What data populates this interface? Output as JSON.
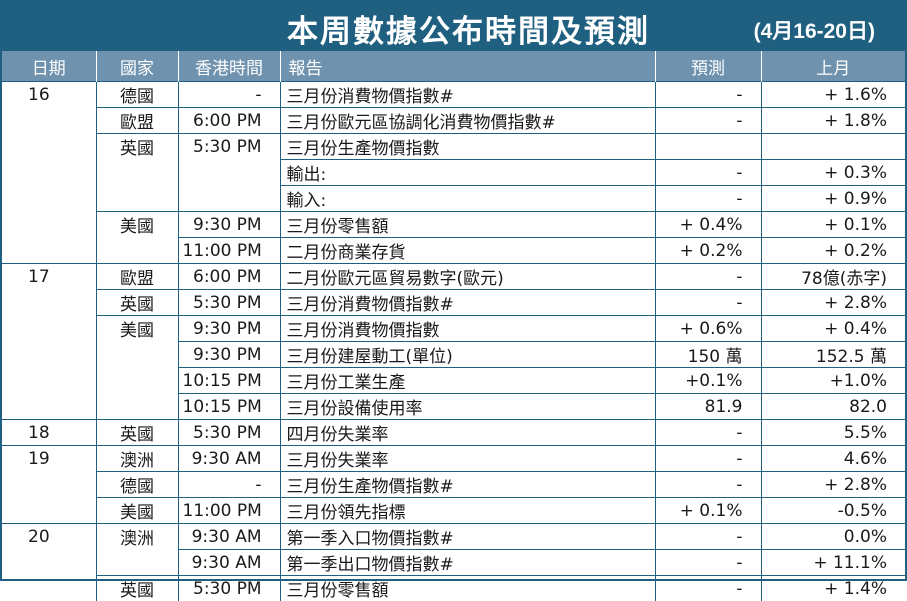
{
  "title": "本周數據公布時間及預測",
  "date_range": "(4月16-20日)",
  "headers": {
    "date": "日期",
    "country": "國家",
    "time": "香港時間",
    "report": "報告",
    "forecast": "預測",
    "last_month": "上月"
  },
  "colors": {
    "header_dark": "#1f5f80",
    "header_light": "#6f92ae",
    "border": "#1f5f80"
  },
  "rows": [
    {
      "date": "16",
      "country": "德國",
      "time": "-",
      "report": "三月份消費物價指數#",
      "forecast": "-",
      "last": "+ 1.6%"
    },
    {
      "date": "",
      "country": "歐盟",
      "time": "6:00 PM",
      "report": "三月份歐元區協調化消費物價指數#",
      "forecast": "-",
      "last": "+ 1.8%"
    },
    {
      "date": "",
      "country": "英國",
      "time": "5:30 PM",
      "report": "三月份生產物價指數",
      "forecast": "",
      "last": ""
    },
    {
      "date": "",
      "country": "",
      "time": "",
      "report": "輸出:",
      "forecast": "-",
      "last": "+ 0.3%"
    },
    {
      "date": "",
      "country": "",
      "time": "",
      "report": "輸入:",
      "forecast": "-",
      "last": "+ 0.9%"
    },
    {
      "date": "",
      "country": "美國",
      "time": "9:30 PM",
      "report": "三月份零售額",
      "forecast": "+ 0.4%",
      "last": "+ 0.1%"
    },
    {
      "date": "",
      "country": "",
      "time": "11:00 PM",
      "report": "二月份商業存貨",
      "forecast": "+ 0.2%",
      "last": "+ 0.2%"
    },
    {
      "date": "17",
      "country": "歐盟",
      "time": "6:00 PM",
      "report": "二月份歐元區貿易數字(歐元)",
      "forecast": "-",
      "last": "78億(赤字)"
    },
    {
      "date": "",
      "country": "英國",
      "time": "5:30 PM",
      "report": "三月份消費物價指數#",
      "forecast": "-",
      "last": "+ 2.8%"
    },
    {
      "date": "",
      "country": "美國",
      "time": "9:30 PM",
      "report": "三月份消費物價指數",
      "forecast": "+ 0.6%",
      "last": "+ 0.4%"
    },
    {
      "date": "",
      "country": "",
      "time": "9:30 PM",
      "report": "三月份建屋動工(單位)",
      "forecast": "150 萬",
      "last": "152.5 萬"
    },
    {
      "date": "",
      "country": "",
      "time": "10:15 PM",
      "report": "三月份工業生產",
      "forecast": "+0.1%",
      "last": "+1.0%"
    },
    {
      "date": "",
      "country": "",
      "time": "10:15 PM",
      "report": "三月份設備使用率",
      "forecast": "81.9",
      "last": "82.0"
    },
    {
      "date": "18",
      "country": "英國",
      "time": "5:30 PM",
      "report": "四月份失業率",
      "forecast": "-",
      "last": "5.5%"
    },
    {
      "date": "19",
      "country": "澳洲",
      "time": "9:30 AM",
      "report": "三月份失業率",
      "forecast": "-",
      "last": "4.6%"
    },
    {
      "date": "",
      "country": "德國",
      "time": "-",
      "report": "三月份生產物價指數#",
      "forecast": "-",
      "last": "+ 2.8%"
    },
    {
      "date": "",
      "country": "美國",
      "time": "11:00 PM",
      "report": "三月份領先指標",
      "forecast": "+ 0.1%",
      "last": "-0.5%"
    },
    {
      "date": "20",
      "country": "澳洲",
      "time": "9:30 AM",
      "report": "第一季入口物價指數#",
      "forecast": "-",
      "last": "0.0%"
    },
    {
      "date": "",
      "country": "",
      "time": "9:30 AM",
      "report": "第一季出口物價指數#",
      "forecast": "-",
      "last": "+ 11.1%"
    },
    {
      "date": "",
      "country": "英國",
      "time": "5:30 PM",
      "report": "三月份零售額",
      "forecast": "-",
      "last": "+ 1.4%"
    }
  ]
}
